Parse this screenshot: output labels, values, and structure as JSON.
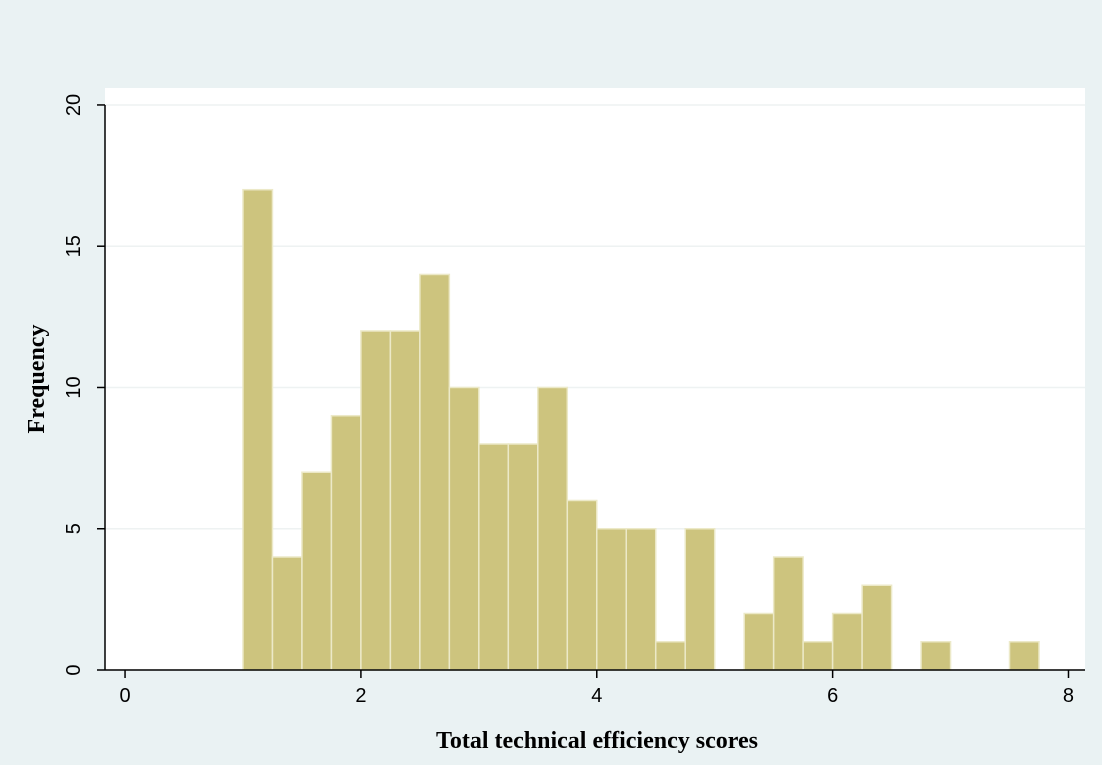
{
  "chart_data": {
    "type": "histogram",
    "xlabel": "Total technical efficiency scores",
    "ylabel": "Frequency",
    "bins": [
      1,
      1.25,
      1.5,
      1.75,
      2,
      2.25,
      2.5,
      2.75,
      3,
      3.25,
      3.5,
      3.75,
      4,
      4.25,
      4.5,
      4.75,
      5,
      5.25,
      5.5,
      5.75,
      6,
      6.25,
      6.5,
      6.75,
      7,
      7.25,
      7.5,
      7.75
    ],
    "counts": [
      17,
      4,
      7,
      9,
      12,
      12,
      14,
      10,
      8,
      8,
      10,
      6,
      5,
      5,
      1,
      5,
      0,
      2,
      4,
      1,
      2,
      3,
      0,
      1,
      0,
      0,
      1
    ],
    "color": "#cdc47e",
    "xlim": [
      -0.17,
      8.14
    ],
    "ylim": [
      0,
      20.6
    ],
    "xticks": [
      0,
      2,
      4,
      6,
      8
    ],
    "yticks": [
      0,
      5,
      10,
      15,
      20
    ],
    "grid": true
  }
}
